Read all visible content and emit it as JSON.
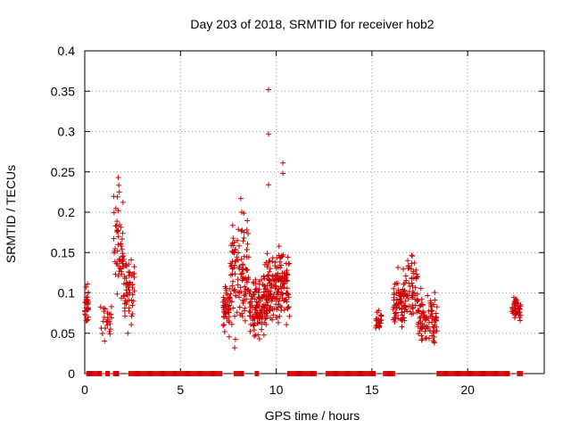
{
  "chart_data": {
    "type": "scatter",
    "title": "Day 203 of 2018, SRMTID for receiver hob2",
    "xlabel": "GPS time / hours",
    "ylabel": "SRMTID / TECUs",
    "xlim": [
      0,
      24
    ],
    "ylim": [
      0,
      0.4
    ],
    "x_ticks": [
      0,
      5,
      10,
      15,
      20
    ],
    "x_tick_labels": [
      "0",
      "5",
      "10",
      "15",
      "20"
    ],
    "y_ticks": [
      0,
      0.05,
      0.1,
      0.15,
      0.2,
      0.25,
      0.3,
      0.35,
      0.4
    ],
    "y_tick_labels": [
      "0",
      "0.05",
      "0.1",
      "0.15",
      "0.2",
      "0.25",
      "0.3",
      "0.35",
      "0.4"
    ],
    "grid": true,
    "marker": "+",
    "color": "#cc0000",
    "series": [
      {
        "name": "SRMTID",
        "clusters": [
          {
            "x_range": [
              0.0,
              0.2
            ],
            "y_range": [
              0.045,
              0.12
            ],
            "count": 30
          },
          {
            "x_range": [
              0.8,
              1.4
            ],
            "y_range": [
              0.03,
              0.1
            ],
            "count": 25
          },
          {
            "x_range": [
              1.5,
              2.05
            ],
            "y_range": [
              0.06,
              0.24
            ],
            "count": 55
          },
          {
            "x_range": [
              2.05,
              2.6
            ],
            "y_range": [
              0.04,
              0.165
            ],
            "count": 55
          },
          {
            "x_range": [
              7.2,
              7.6
            ],
            "y_range": [
              0.03,
              0.13
            ],
            "count": 50
          },
          {
            "x_range": [
              7.6,
              8.6
            ],
            "y_range": [
              0.025,
              0.215
            ],
            "count": 110
          },
          {
            "x_range": [
              8.6,
              9.3
            ],
            "y_range": [
              0.03,
              0.13
            ],
            "count": 90
          },
          {
            "x_range": [
              9.3,
              9.8
            ],
            "y_range": [
              0.04,
              0.16
            ],
            "count": 80
          },
          {
            "x_range": [
              9.8,
              10.7
            ],
            "y_range": [
              0.04,
              0.175
            ],
            "count": 120
          },
          {
            "x_range": [
              15.2,
              15.5
            ],
            "y_range": [
              0.05,
              0.08
            ],
            "count": 22
          },
          {
            "x_range": [
              16.1,
              16.6
            ],
            "y_range": [
              0.03,
              0.14
            ],
            "count": 55
          },
          {
            "x_range": [
              16.6,
              17.4
            ],
            "y_range": [
              0.05,
              0.16
            ],
            "count": 75
          },
          {
            "x_range": [
              17.4,
              18.4
            ],
            "y_range": [
              0.02,
              0.12
            ],
            "count": 95
          },
          {
            "x_range": [
              22.3,
              22.8
            ],
            "y_range": [
              0.06,
              0.1
            ],
            "count": 40
          }
        ],
        "outliers": [
          {
            "x": 1.75,
            "y": 0.243
          },
          {
            "x": 1.8,
            "y": 0.225
          },
          {
            "x": 1.7,
            "y": 0.219
          },
          {
            "x": 8.15,
            "y": 0.217
          },
          {
            "x": 8.2,
            "y": 0.2
          },
          {
            "x": 9.6,
            "y": 0.352
          },
          {
            "x": 9.6,
            "y": 0.297
          },
          {
            "x": 9.6,
            "y": 0.234
          },
          {
            "x": 10.35,
            "y": 0.261
          },
          {
            "x": 10.35,
            "y": 0.248
          }
        ],
        "zero_intervals": [
          [
            0.1,
            0.7
          ],
          [
            0.7,
            0.9
          ],
          [
            1.1,
            1.3
          ],
          [
            1.5,
            1.8
          ],
          [
            2.3,
            7.2
          ],
          [
            7.8,
            8.3
          ],
          [
            8.9,
            9.1
          ],
          [
            10.6,
            12.1
          ],
          [
            12.6,
            15.2
          ],
          [
            15.6,
            16.2
          ],
          [
            18.4,
            22.2
          ],
          [
            22.6,
            22.9
          ]
        ]
      }
    ]
  }
}
